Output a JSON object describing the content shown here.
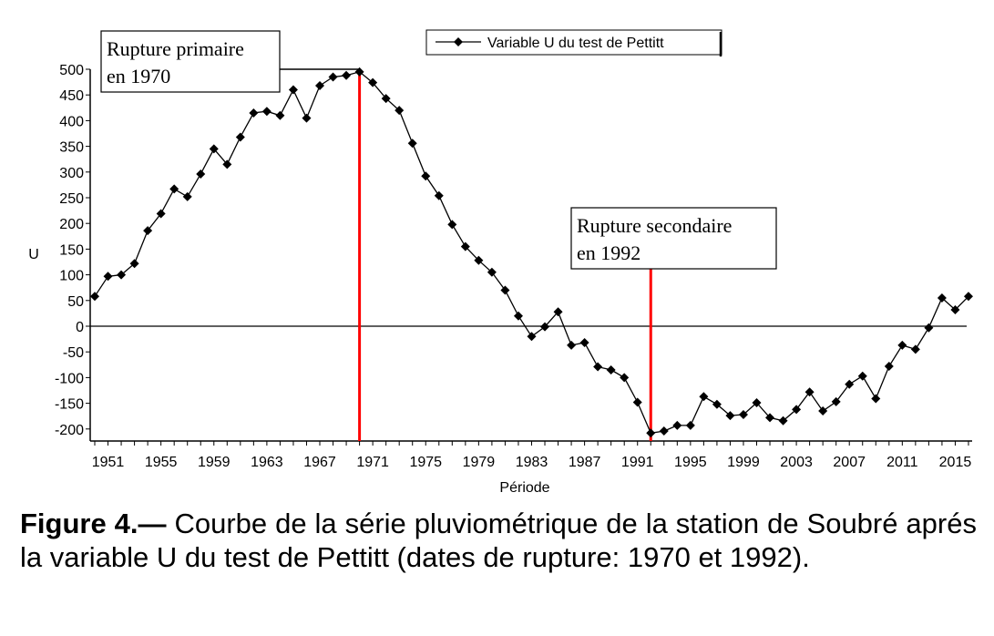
{
  "chart_data": {
    "type": "line",
    "xlabel": "Période",
    "ylabel": "U",
    "xlim": [
      1950,
      2016
    ],
    "ylim": [
      -215,
      505
    ],
    "yticks": [
      500,
      450,
      400,
      350,
      300,
      250,
      200,
      150,
      100,
      50,
      0,
      -50,
      -100,
      -150,
      -200
    ],
    "xticks": [
      1951,
      1955,
      1959,
      1963,
      1967,
      1971,
      1975,
      1979,
      1983,
      1987,
      1991,
      1995,
      1999,
      2003,
      2007,
      2011,
      2015
    ],
    "grid": false,
    "legend_position": "top-center",
    "series": [
      {
        "name": "Variable U du test de Pettitt",
        "color": "#000000",
        "marker": "diamond",
        "x": [
          1950,
          1951,
          1952,
          1953,
          1954,
          1955,
          1956,
          1957,
          1958,
          1959,
          1960,
          1961,
          1962,
          1963,
          1964,
          1965,
          1966,
          1967,
          1968,
          1969,
          1970,
          1971,
          1972,
          1973,
          1974,
          1975,
          1976,
          1977,
          1978,
          1979,
          1980,
          1981,
          1982,
          1983,
          1984,
          1985,
          1986,
          1987,
          1988,
          1989,
          1990,
          1991,
          1992,
          1993,
          1994,
          1995,
          1996,
          1997,
          1998,
          1999,
          2000,
          2001,
          2002,
          2003,
          2004,
          2005,
          2006,
          2007,
          2008,
          2009,
          2010,
          2011,
          2012,
          2013,
          2014,
          2015,
          2016
        ],
        "y": [
          58,
          97,
          100,
          122,
          186,
          219,
          267,
          252,
          296,
          345,
          315,
          368,
          415,
          418,
          410,
          460,
          405,
          468,
          485,
          488,
          495,
          474,
          443,
          420,
          356,
          292,
          254,
          198,
          155,
          128,
          105,
          70,
          20,
          -20,
          -1,
          28,
          -37,
          -32,
          -79,
          -85,
          -100,
          -148,
          -208,
          -204,
          -193,
          -193,
          -137,
          -152,
          -174,
          -172,
          -149,
          -178,
          -184,
          -162,
          -128,
          -165,
          -147,
          -113,
          -97,
          -141,
          -78,
          -37,
          -45,
          -3,
          55,
          32,
          58
        ]
      }
    ],
    "annotations": [
      {
        "text_line1": "Rupture primaire",
        "text_line2": "en 1970",
        "x": 1970,
        "color": "#ff0000"
      },
      {
        "text_line1": "Rupture secondaire",
        "text_line2": "en 1992",
        "x": 1992,
        "color": "#ff0000"
      }
    ]
  },
  "caption": {
    "label": "Figure 4.—",
    "text": " Courbe de la série pluviométrique de la station de Soubré aprés la variable U du test de Pettitt (dates de rupture: 1970 et 1992)."
  }
}
